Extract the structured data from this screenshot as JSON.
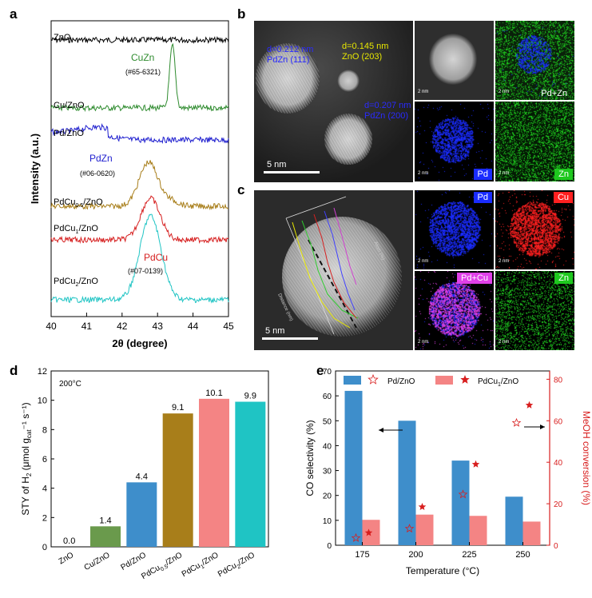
{
  "panel_labels": {
    "a": "a",
    "b": "b",
    "c": "c",
    "d": "d",
    "e": "e"
  },
  "colors": {
    "ZnO": "#000000",
    "CuZn": "#2e8b2e",
    "PdZn": "#1f1fcf",
    "PdCu05": "#a87e1a",
    "PdCu1": "#d62020",
    "PdCu2": "#1fc4c4",
    "bar_blue": "#3e8ecb",
    "bar_pink": "#f48484",
    "star_red": "#d81e1e",
    "eds_blue": "#1a2cff",
    "eds_green": "#1ec81e",
    "eds_red": "#ff2020",
    "eds_magenta": "#e040e8"
  },
  "chart_data": [
    {
      "id": "a",
      "type": "line",
      "xlabel": "2θ (degree)",
      "ylabel": "Intensity (a.u.)",
      "xlim": [
        40,
        45
      ],
      "xticks": [
        "40",
        "41",
        "42",
        "43",
        "44",
        "45"
      ],
      "series": [
        {
          "name": "ZnO",
          "label_main": "ZnO",
          "label_sub": "",
          "label_tail": ""
        },
        {
          "name": "Cu/ZnO",
          "label_main": "Cu/ZnO",
          "label_sub": "",
          "label_tail": "",
          "peak_x": 43.4
        },
        {
          "name": "Pd/ZnO",
          "label_main": "Pd/ZnO",
          "label_sub": "",
          "label_tail": ""
        },
        {
          "name": "PdCu0.5/ZnO",
          "label_main": "PdCu",
          "label_sub": "0.5",
          "label_tail": "/ZnO",
          "peak_x": 42.8
        },
        {
          "name": "PdCu1/ZnO",
          "label_main": "PdCu",
          "label_sub": "1",
          "label_tail": "/ZnO",
          "peak_x": 42.8
        },
        {
          "name": "PdCu2/ZnO",
          "label_main": "PdCu",
          "label_sub": "2",
          "label_tail": "/ZnO",
          "peak_x": 42.8
        }
      ],
      "annotations": [
        {
          "text": "CuZn",
          "ref": "(#65-6321)"
        },
        {
          "text": "PdZn",
          "ref": "(#06-0620)"
        },
        {
          "text": "PdCu",
          "ref": "(#07-0139)"
        }
      ]
    },
    {
      "id": "d",
      "type": "bar",
      "annotation": "200°C",
      "ylabel_main": "STY of H",
      "ylabel_sub": "2",
      "ylabel_unit": " (μmol g",
      "ylabel_unit_sub": "cat",
      "ylabel_tail": "⁻¹ s⁻¹)",
      "ylim": [
        0,
        12
      ],
      "yticks": [
        "0",
        "2",
        "4",
        "6",
        "8",
        "10",
        "12"
      ],
      "categories": [
        {
          "main": "ZnO",
          "sub": "",
          "tail": ""
        },
        {
          "main": "Cu/ZnO",
          "sub": "",
          "tail": ""
        },
        {
          "main": "Pd/ZnO",
          "sub": "",
          "tail": ""
        },
        {
          "main": "PdCu",
          "sub": "0.5",
          "tail": "/ZnO"
        },
        {
          "main": "PdCu",
          "sub": "1",
          "tail": "/ZnO"
        },
        {
          "main": "PdCu",
          "sub": "2",
          "tail": "/ZnO"
        }
      ],
      "values": [
        0.0,
        1.4,
        4.4,
        9.1,
        10.1,
        9.9
      ],
      "value_labels": [
        "0.0",
        "1.4",
        "4.4",
        "9.1",
        "10.1",
        "9.9"
      ],
      "bar_colors": [
        "#000000",
        "#6a9a4c",
        "#3e8ecb",
        "#a87e1a",
        "#f48484",
        "#1fc4c4"
      ]
    },
    {
      "id": "e",
      "type": "bar",
      "xlabel": "Temperature (°C)",
      "ylabel": "CO selectivity (%)",
      "y2label": "MeOH conversion (%)",
      "ylim": [
        0,
        70
      ],
      "y2lim": [
        0,
        84
      ],
      "yticks": [
        "0",
        "10",
        "20",
        "30",
        "40",
        "50",
        "60",
        "70"
      ],
      "y2ticks": [
        "0",
        "20",
        "40",
        "60",
        "80"
      ],
      "categories": [
        "175",
        "200",
        "225",
        "250"
      ],
      "series": [
        {
          "name": "Pd/ZnO",
          "type": "bar",
          "values": [
            62,
            50,
            34,
            19.5
          ]
        },
        {
          "name": "PdCu₁/ZnO",
          "type": "bar",
          "values": [
            10.2,
            12.3,
            11.8,
            9.5
          ]
        },
        {
          "name": "Pd/ZnO",
          "type": "scatter",
          "axis": "right",
          "values": [
            3.5,
            8,
            24.5,
            59
          ]
        },
        {
          "name": "PdCu₁/ZnO",
          "type": "scatter",
          "axis": "right",
          "values": [
            6,
            18.5,
            39,
            67.5
          ]
        }
      ],
      "legend": [
        {
          "main": "Pd/ZnO",
          "sub": "",
          "tail": ""
        },
        {
          "main": "PdCu",
          "sub": "1",
          "tail": "/ZnO"
        }
      ]
    }
  ],
  "panel_b": {
    "annotations": [
      {
        "line1": "d=0.212 nm",
        "line2": "PdZn (111)"
      },
      {
        "line1": "d=0.145 nm",
        "line2": "ZnO (203)"
      },
      {
        "line1": "d=0.207 nm",
        "line2": "PdZn (200)"
      }
    ],
    "scale": "5 nm",
    "mini_scale": "2 nm",
    "maps": {
      "pdzn": "Pd+Zn",
      "pd": "Pd",
      "zn": "Zn"
    }
  },
  "panel_c": {
    "scale": "5 nm",
    "mini_scale": "2 nm",
    "maps": {
      "pd": "Pd",
      "cu": "Cu",
      "pdcu": "Pd+Cu",
      "zn": "Zn"
    },
    "inset_label_x": "Distance (nm)",
    "inset_label_y": "Atom (%)"
  }
}
